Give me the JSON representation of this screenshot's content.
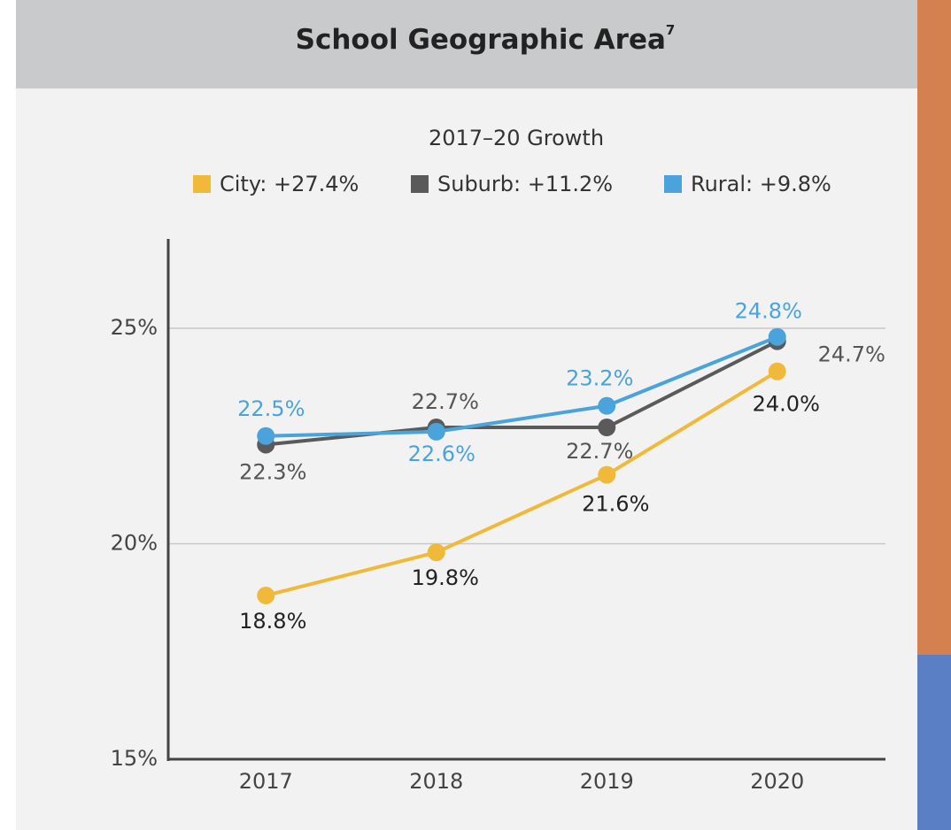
{
  "chart_data": {
    "type": "line",
    "title": "School Geographic Area",
    "title_footnote": "7",
    "subtitle": "2017–20 Growth",
    "categories": [
      "2017",
      "2018",
      "2019",
      "2020"
    ],
    "series": [
      {
        "name": "City: +27.4%",
        "color": "#f0b93a",
        "values": [
          18.8,
          19.8,
          21.6,
          24.0
        ],
        "value_labels": [
          "18.8%",
          "19.8%",
          "21.6%",
          "24.0%"
        ]
      },
      {
        "name": "Suburb: +11.2%",
        "color": "#5a5a5a",
        "values": [
          22.3,
          22.7,
          22.7,
          24.7
        ],
        "value_labels": [
          "22.3%",
          "22.7%",
          "22.7%",
          "24.7%"
        ]
      },
      {
        "name": "Rural: +9.8%",
        "color": "#4aa3db",
        "values": [
          22.5,
          22.6,
          23.2,
          24.8
        ],
        "value_labels": [
          "22.5%",
          "22.6%",
          "23.2%",
          "24.8%"
        ]
      }
    ],
    "ylim": [
      15,
      27
    ],
    "yticks": [
      {
        "value": 15,
        "label": "15%"
      },
      {
        "value": 20,
        "label": "20%"
      },
      {
        "value": 25,
        "label": "25%"
      }
    ],
    "grid": true,
    "legend": "top"
  }
}
